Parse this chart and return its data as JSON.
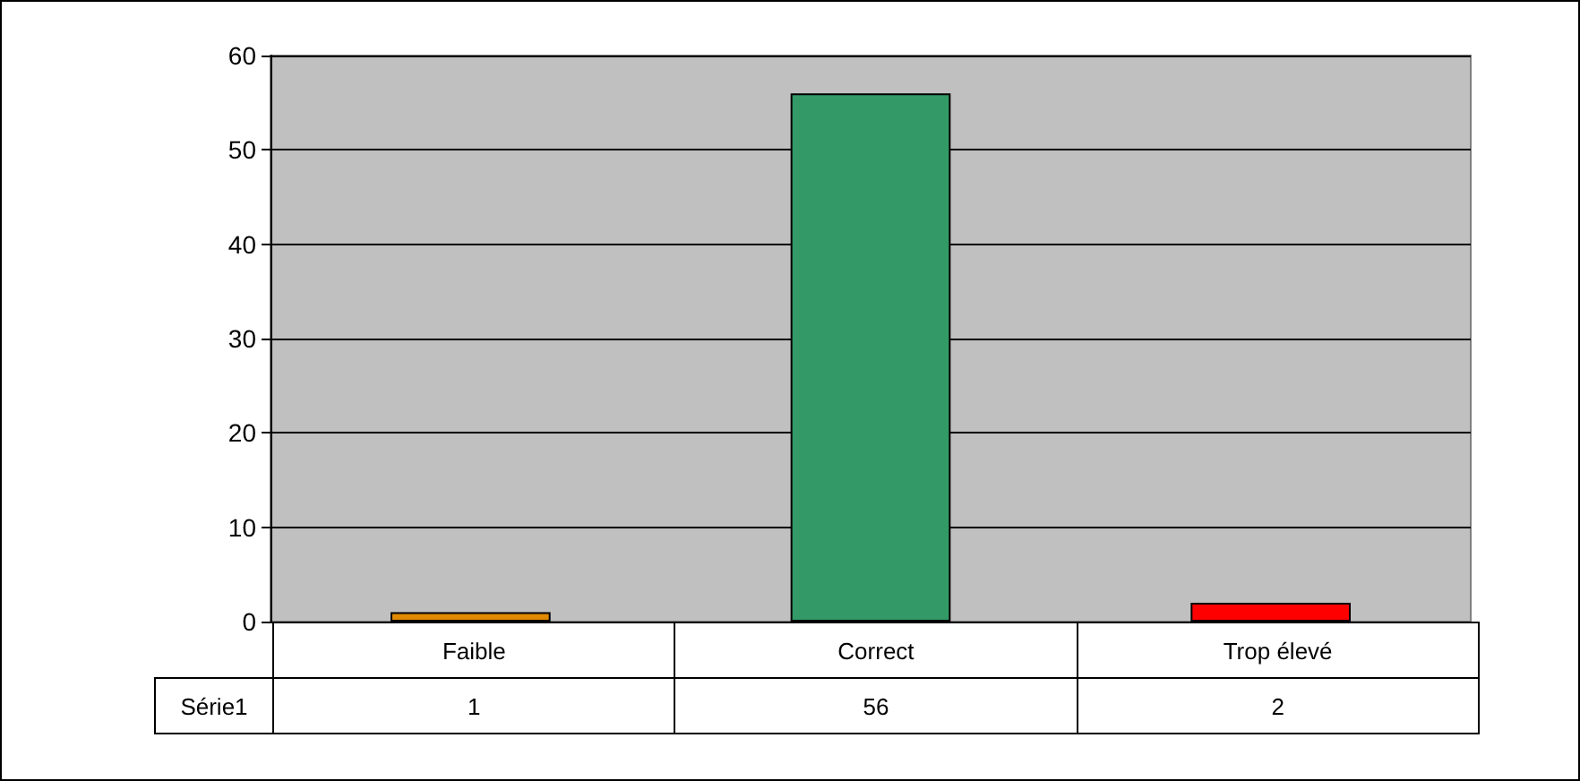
{
  "chart_data": {
    "type": "bar",
    "categories": [
      "Faible",
      "Correct",
      "Trop élevé"
    ],
    "series": [
      {
        "name": "Série1",
        "colors": [
          "#e08a00",
          "#339966",
          "#ff0000"
        ],
        "values": [
          1,
          56,
          2
        ]
      }
    ],
    "ylim": [
      0,
      60
    ],
    "yticks": [
      0,
      10,
      20,
      30,
      40,
      50,
      60
    ],
    "grid": "y",
    "legend": false,
    "data_labels": true
  }
}
